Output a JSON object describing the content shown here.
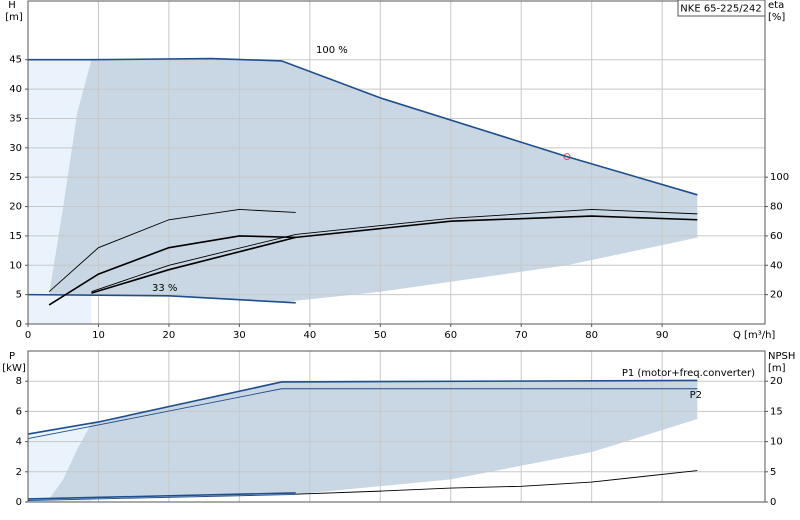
{
  "chart_data": [
    {
      "type": "line",
      "title": "NKE 65-225/242",
      "xlabel": "Q [m³/h]",
      "ylabel": "H",
      "yunit": "[m]",
      "y2label": "eta",
      "y2unit": "[%]",
      "xlim": [
        0,
        104.6
      ],
      "xticks": [
        0,
        10,
        20,
        30,
        40,
        50,
        60,
        70,
        80,
        90
      ],
      "ylim": [
        0,
        55
      ],
      "yticks": [
        0,
        5,
        10,
        15,
        20,
        25,
        30,
        35,
        40,
        45
      ],
      "y2lim": [
        0,
        220
      ],
      "y2ticks": [
        20,
        40,
        60,
        80,
        100
      ],
      "grid": true,
      "series": [
        {
          "kind": "area",
          "color": "#eaf3fb",
          "x": [
            0,
            9
          ],
          "values": [
            45,
            45
          ],
          "lower": [
            0,
            0
          ]
        },
        {
          "kind": "area",
          "color": "#c9d6e3",
          "x": [
            3,
            5,
            7,
            9,
            26,
            36,
            50,
            76.5,
            95
          ],
          "values": [
            5,
            20,
            36,
            45,
            45.2,
            44.8,
            38.5,
            28.5,
            22
          ],
          "lower": [
            5,
            5,
            5,
            5,
            4.5,
            3.7,
            5.5,
            10,
            14.7
          ]
        },
        {
          "name": "100 %",
          "kind": "line",
          "style": "thick",
          "color": "#1f4e8c",
          "x": [
            0,
            9,
            26,
            36,
            50,
            76.5,
            95
          ],
          "values": [
            45,
            45,
            45.2,
            44.8,
            38.5,
            28.5,
            22
          ]
        },
        {
          "name": "33 %",
          "kind": "line",
          "style": "thick",
          "color": "#1f4e8c",
          "x": [
            0,
            20,
            38
          ],
          "values": [
            5,
            4.8,
            3.6
          ]
        },
        {
          "kind": "line",
          "style": "thick",
          "color": "#000000",
          "axis": "y2",
          "x": [
            9,
            20,
            38,
            60,
            80,
            95
          ],
          "values": [
            21,
            37,
            59,
            70,
            73.5,
            71
          ]
        },
        {
          "kind": "line",
          "style": "thin",
          "color": "#000000",
          "axis": "y2",
          "x": [
            9,
            20,
            38,
            60,
            80,
            95
          ],
          "values": [
            22,
            40,
            61,
            72,
            78,
            75
          ]
        },
        {
          "kind": "line",
          "style": "thin",
          "color": "#000000",
          "axis": "y2",
          "x": [
            3,
            10,
            20,
            30,
            38
          ],
          "values": [
            22,
            52,
            71,
            78,
            76
          ]
        },
        {
          "kind": "line",
          "style": "thick",
          "color": "#000000",
          "axis": "y2",
          "x": [
            3,
            10,
            20,
            30,
            38
          ],
          "values": [
            13,
            34,
            52,
            60,
            59
          ]
        },
        {
          "kind": "marker",
          "color": "#e05050",
          "x": [
            76.5
          ],
          "values": [
            28.5
          ]
        }
      ]
    },
    {
      "type": "line",
      "ylabel": "P",
      "yunit": "[kW]",
      "y2label": "NPSH",
      "y2unit": "[m]",
      "xlim": [
        0,
        104.6
      ],
      "ylim": [
        0,
        10
      ],
      "yticks": [
        0,
        2,
        4,
        6,
        8
      ],
      "y2lim": [
        0,
        25
      ],
      "y2ticks": [
        0,
        5,
        10,
        15,
        20
      ],
      "grid": true,
      "series": [
        {
          "kind": "area",
          "color": "#eaf3fb",
          "x": [
            0,
            9
          ],
          "values": [
            4.5,
            5.2
          ],
          "lower": [
            0,
            0
          ]
        },
        {
          "kind": "area",
          "color": "#c9d6e3",
          "x": [
            3,
            5,
            7,
            9,
            36,
            38,
            40,
            60,
            80,
            95
          ],
          "values": [
            0.2,
            1.5,
            3.5,
            5.2,
            8,
            8,
            8,
            8,
            8,
            8
          ],
          "lower": [
            0.2,
            0.2,
            0.25,
            0.3,
            0.5,
            0.5,
            0.6,
            1.5,
            3.3,
            5.5
          ]
        },
        {
          "name": "P1 (motor+freq.converter)",
          "kind": "line",
          "style": "thick",
          "color": "#1f4e8c",
          "x": [
            0,
            10,
            36,
            95
          ],
          "values": [
            4.5,
            5.3,
            7.95,
            8.05
          ]
        },
        {
          "name": "P2",
          "kind": "line",
          "style": "thin",
          "color": "#1f4e8c",
          "x": [
            0,
            10,
            36,
            95
          ],
          "values": [
            4.2,
            5.1,
            7.5,
            7.5
          ]
        },
        {
          "kind": "line",
          "style": "thick",
          "color": "#1f4e8c",
          "x": [
            0,
            38
          ],
          "values": [
            0.2,
            0.6
          ]
        },
        {
          "kind": "line",
          "style": "thin",
          "color": "#1f4e8c",
          "x": [
            0,
            38
          ],
          "values": [
            0.1,
            0.5
          ]
        },
        {
          "kind": "line",
          "style": "thin",
          "color": "#000000",
          "axis": "y2",
          "x": [
            38,
            50,
            60,
            70,
            80,
            95
          ],
          "values": [
            1.3,
            1.8,
            2.3,
            2.6,
            3.3,
            5.2
          ]
        }
      ]
    }
  ]
}
